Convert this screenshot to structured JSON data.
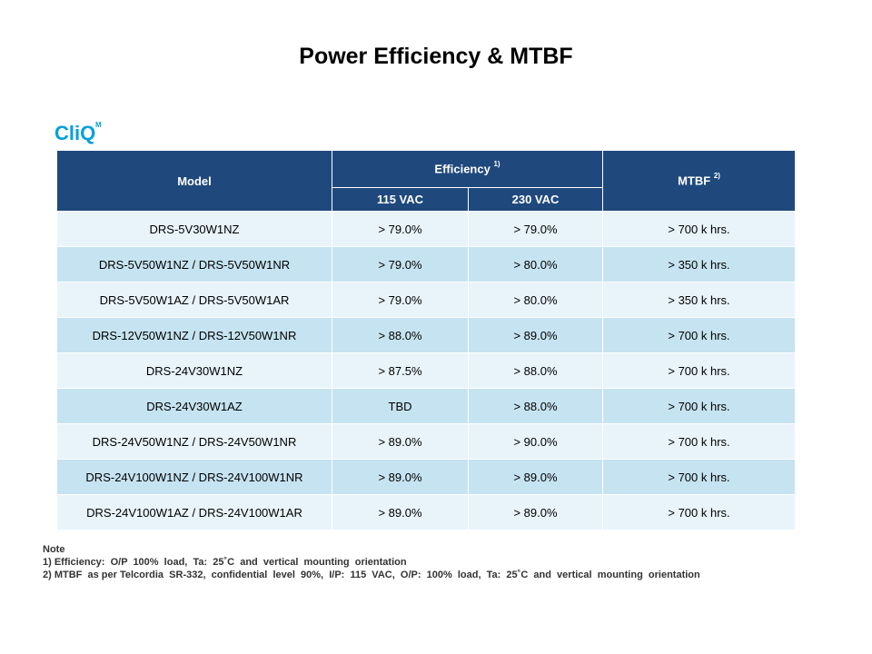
{
  "title": "Power Efficiency & MTBF",
  "logo": {
    "text": "CliQ",
    "superscript": "M",
    "color": "#00a0dc",
    "icon": "cliq-logo-icon"
  },
  "table": {
    "headers": {
      "model": "Model",
      "efficiency": "Efficiency",
      "efficiency_note": "1)",
      "mtbf": "MTBF",
      "mtbf_note": "2)",
      "vac115": "115 VAC",
      "vac230": "230 VAC"
    },
    "header_color": "#1f497d",
    "row_colors": [
      "#e8f4fa",
      "#c6e3f1"
    ],
    "rows": [
      {
        "model": "DRS-5V30W1NZ",
        "eff115": "> 79.0%",
        "eff230": "> 79.0%",
        "mtbf": "> 700 k hrs."
      },
      {
        "model": "DRS-5V50W1NZ / DRS-5V50W1NR",
        "eff115": "> 79.0%",
        "eff230": "> 80.0%",
        "mtbf": "> 350 k hrs."
      },
      {
        "model": "DRS-5V50W1AZ / DRS-5V50W1AR",
        "eff115": "> 79.0%",
        "eff230": "> 80.0%",
        "mtbf": "> 350 k hrs."
      },
      {
        "model": "DRS-12V50W1NZ / DRS-12V50W1NR",
        "eff115": "> 88.0%",
        "eff230": "> 89.0%",
        "mtbf": "> 700 k hrs."
      },
      {
        "model": "DRS-24V30W1NZ",
        "eff115": "> 87.5%",
        "eff230": "> 88.0%",
        "mtbf": "> 700 k hrs."
      },
      {
        "model": "DRS-24V30W1AZ",
        "eff115": "TBD",
        "eff230": "> 88.0%",
        "mtbf": "> 700 k hrs."
      },
      {
        "model": "DRS-24V50W1NZ / DRS-24V50W1NR",
        "eff115": "> 89.0%",
        "eff230": "> 90.0%",
        "mtbf": "> 700 k hrs."
      },
      {
        "model": "DRS-24V100W1NZ / DRS-24V100W1NR",
        "eff115": "> 89.0%",
        "eff230": "> 89.0%",
        "mtbf": "> 700 k hrs."
      },
      {
        "model": "DRS-24V100W1AZ / DRS-24V100W1AR",
        "eff115": "> 89.0%",
        "eff230": "> 89.0%",
        "mtbf": "> 700 k hrs."
      }
    ]
  },
  "notes": {
    "heading": "Note",
    "lines": [
      "1) Efficiency:  O/P  100%  load,  Ta:  25˚C  and  vertical  mounting  orientation",
      "2) MTBF  as per Telcordia  SR-332,  confidential  level  90%,  I/P:  115  VAC,  O/P:  100%  load,  Ta:  25˚C  and  vertical  mounting  orientation"
    ]
  }
}
